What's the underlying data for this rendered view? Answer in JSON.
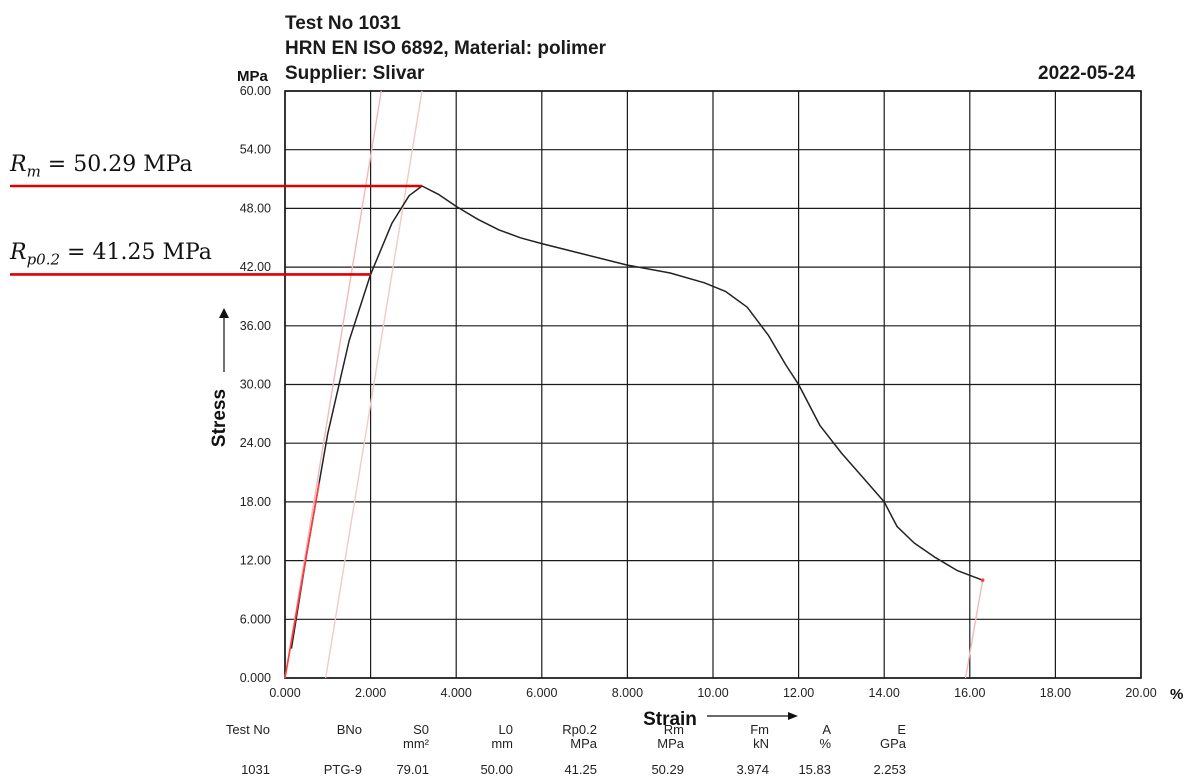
{
  "header": {
    "line1": "Test No  1031",
    "line2": "HRN EN ISO 6892, Material: polimer",
    "line3": "Supplier: Slivar",
    "date": "2022-05-24",
    "y_unit": "MPa",
    "x_unit": "%"
  },
  "annotations": {
    "rm": {
      "symbol": "R",
      "sub": "m",
      "text": " = 50.29 MPa",
      "value": 50.29,
      "color": "#e00000"
    },
    "rp": {
      "symbol": "R",
      "sub": "p0.2",
      "text": " = 41.25 MPa",
      "value": 41.25,
      "color": "#e00000"
    }
  },
  "results_table": {
    "columns": [
      {
        "name": "Test No",
        "unit": "",
        "value": "1031"
      },
      {
        "name": "BNo",
        "unit": "",
        "value": "PTG-9"
      },
      {
        "name": "S0",
        "unit": "mm²",
        "value": "79.01"
      },
      {
        "name": "L0",
        "unit": "mm",
        "value": "50.00"
      },
      {
        "name": "Rp0.2",
        "unit": "MPa",
        "value": "41.25"
      },
      {
        "name": "Rm",
        "unit": "MPa",
        "value": "50.29"
      },
      {
        "name": "Fm",
        "unit": "kN",
        "value": "3.974"
      },
      {
        "name": "A",
        "unit": "%",
        "value": "15.83"
      },
      {
        "name": "E",
        "unit": "GPa",
        "value": "2.253"
      }
    ]
  },
  "chart_data": {
    "type": "line",
    "title": "",
    "xlabel": "Strain",
    "ylabel": "Stress",
    "xlim": [
      0,
      20
    ],
    "ylim": [
      0,
      60
    ],
    "x_ticks": [
      "0.000",
      "2.000",
      "4.000",
      "6.000",
      "8.000",
      "10.00",
      "12.00",
      "14.00",
      "16.00",
      "18.00",
      "20.00"
    ],
    "y_ticks": [
      "0.000",
      "6.000",
      "12.00",
      "18.00",
      "24.00",
      "30.00",
      "36.00",
      "42.00",
      "48.00",
      "54.00",
      "60.00"
    ],
    "grid": true,
    "series": [
      {
        "name": "",
        "color": "#222222",
        "x": [
          0.15,
          0.5,
          1.0,
          1.5,
          2.0,
          2.5,
          2.9,
          3.2,
          3.6,
          4.0,
          4.5,
          5.0,
          5.5,
          6.0,
          7.0,
          8.0,
          9.0,
          9.8,
          10.3,
          10.8,
          11.3,
          11.7,
          12.0,
          12.5,
          13.0,
          13.5,
          14.0,
          14.3,
          14.7,
          15.2,
          15.7,
          16.3
        ],
        "y": [
          3.0,
          12.5,
          25.0,
          34.5,
          41.25,
          46.5,
          49.3,
          50.29,
          49.4,
          48.2,
          46.9,
          45.8,
          45.0,
          44.4,
          43.3,
          42.2,
          41.4,
          40.4,
          39.5,
          37.9,
          35.0,
          32.0,
          30.0,
          25.8,
          23.0,
          20.5,
          18.0,
          15.5,
          13.8,
          12.3,
          11.0,
          10.0
        ]
      }
    ],
    "construction_lines": [
      {
        "from": [
          0.0,
          0.0
        ],
        "to": [
          2.25,
          60.0
        ],
        "color": "#f2b9b9"
      },
      {
        "from": [
          0.95,
          0.0
        ],
        "to": [
          3.2,
          60.0
        ],
        "color": "#f2c9c9"
      },
      {
        "from": [
          15.9,
          0.0
        ],
        "to": [
          16.3,
          10.0
        ],
        "color": "#f2b9b9"
      }
    ],
    "elastic_segment": {
      "from": [
        0.0,
        0.0
      ],
      "to": [
        0.8,
        20.0
      ],
      "color": "#ff3b3b"
    },
    "end_marker": {
      "x": 16.3,
      "y": 10.0,
      "color": "#ff3b3b"
    }
  }
}
